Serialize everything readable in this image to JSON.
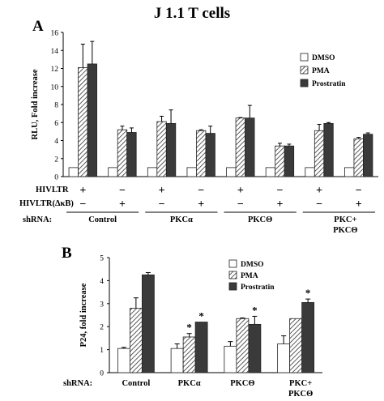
{
  "figure": {
    "title": "J 1.1  T cells"
  },
  "chart_data": [
    {
      "panel": "A",
      "type": "bar",
      "ylabel": "RLU, Fold increase",
      "ylim": [
        0,
        16
      ],
      "yticks": [
        0,
        2,
        4,
        6,
        8,
        10,
        12,
        14,
        16
      ],
      "legend": {
        "position": "top-right",
        "entries": [
          "DMSO",
          "PMA",
          "Prostratin"
        ]
      },
      "row_labels": [
        "HIVLTR",
        "HIVLTR(ΔκB)",
        "shRNA:"
      ],
      "groups": [
        "Control",
        "PKCα",
        "PKCΘ",
        "PKC+ PKCΘ"
      ],
      "hivltr_marks": [
        "+",
        "−",
        "+",
        "−",
        "+",
        "−",
        "+",
        "−"
      ],
      "hivltr_dkb_marks": [
        "−",
        "+",
        "−",
        "+",
        "−",
        "+",
        "−",
        "+"
      ],
      "series": [
        {
          "name": "DMSO",
          "values": [
            1.0,
            1.0,
            1.0,
            1.0,
            1.0,
            1.0,
            1.0,
            1.0
          ],
          "errors": [
            0,
            0,
            0,
            0,
            0,
            0,
            0,
            0
          ]
        },
        {
          "name": "PMA",
          "values": [
            12.1,
            5.2,
            6.1,
            5.1,
            6.5,
            3.4,
            5.1,
            4.2
          ],
          "errors": [
            2.6,
            0.4,
            0.6,
            0.1,
            0.05,
            0.3,
            0.7,
            0.15
          ]
        },
        {
          "name": "Prostratin",
          "values": [
            12.5,
            4.9,
            5.9,
            4.8,
            6.5,
            3.4,
            5.9,
            4.7
          ],
          "errors": [
            2.5,
            0.5,
            1.5,
            0.8,
            1.4,
            0.2,
            0.1,
            0.15
          ]
        }
      ]
    },
    {
      "panel": "B",
      "type": "bar",
      "ylabel": "P24, fold increase",
      "ylim": [
        0,
        5
      ],
      "yticks": [
        0,
        1,
        2,
        3,
        4,
        5
      ],
      "legend": {
        "position": "top-center",
        "entries": [
          "DMSO",
          "PMA",
          "Prostratin"
        ]
      },
      "row_labels": [
        "shRNA:"
      ],
      "groups": [
        "Control",
        "PKCα",
        "PKCΘ",
        "PKC+ PKCΘ"
      ],
      "series": [
        {
          "name": "DMSO",
          "values": [
            1.05,
            1.05,
            1.15,
            1.25
          ],
          "errors": [
            0.05,
            0.2,
            0.2,
            0.35
          ]
        },
        {
          "name": "PMA",
          "values": [
            2.8,
            1.55,
            2.35,
            2.35
          ],
          "errors": [
            0.45,
            0.15,
            0.03,
            0.0
          ]
        },
        {
          "name": "Prostratin",
          "values": [
            4.25,
            2.2,
            2.1,
            3.05
          ],
          "errors": [
            0.1,
            0.0,
            0.35,
            0.15
          ]
        }
      ],
      "annotations": [
        {
          "group": 1,
          "series": "PMA",
          "text": "*"
        },
        {
          "group": 1,
          "series": "Prostratin",
          "text": "*"
        },
        {
          "group": 2,
          "series": "Prostratin",
          "text": "*"
        },
        {
          "group": 3,
          "series": "Prostratin",
          "text": "*"
        }
      ]
    }
  ]
}
